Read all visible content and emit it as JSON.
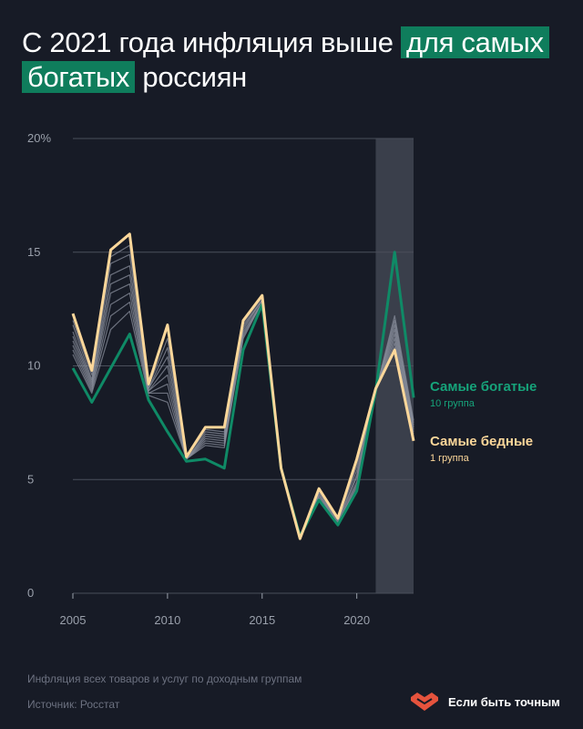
{
  "title": {
    "part1": "С 2021 года инфляция выше",
    "highlight1": "для самых",
    "highlight2": "богатых",
    "part2": "россиян"
  },
  "footnote": {
    "description": "Инфляция всех товаров и услуг по доходным группам",
    "source": "Источник: Росстат"
  },
  "brand": {
    "name": "Если быть точным"
  },
  "colors": {
    "background": "#171b26",
    "rich": "#0f8a66",
    "poor": "#fcd79a",
    "middle": "#8a8f9c",
    "highlight_band": "#3a3f4b",
    "title_highlight": "#0f7d5c",
    "grid": "#4a4f5b",
    "tick": "#9aa0ab"
  },
  "chart_data": {
    "type": "line",
    "title": "С 2021 года инфляция выше для самых богатых россиян",
    "xlabel": "",
    "ylabel": "",
    "x": [
      2005,
      2006,
      2007,
      2008,
      2009,
      2010,
      2011,
      2012,
      2013,
      2014,
      2015,
      2016,
      2017,
      2018,
      2019,
      2020,
      2021,
      2022,
      2023
    ],
    "xlim": [
      2005,
      2023
    ],
    "ylim": [
      0,
      20
    ],
    "y_ticks": [
      {
        "value": 0,
        "label": "0"
      },
      {
        "value": 5,
        "label": "5"
      },
      {
        "value": 10,
        "label": "10"
      },
      {
        "value": 15,
        "label": "15"
      },
      {
        "value": 20,
        "label": "20%"
      }
    ],
    "x_ticks": [
      {
        "value": 2005,
        "label": "2005"
      },
      {
        "value": 2010,
        "label": "2010"
      },
      {
        "value": 2015,
        "label": "2015"
      },
      {
        "value": 2020,
        "label": "2020"
      }
    ],
    "highlight_range": [
      2021,
      2023
    ],
    "grid": true,
    "series": [
      {
        "name": "Самые богатые",
        "sublabel": "10 группа",
        "role": "rich",
        "values": [
          9.9,
          8.4,
          9.9,
          11.4,
          8.5,
          7.1,
          5.8,
          5.9,
          5.5,
          10.7,
          12.7,
          5.5,
          2.5,
          4.1,
          3.0,
          4.5,
          8.9,
          15.0,
          8.6
        ]
      },
      {
        "name": "Самые бедные",
        "sublabel": "1 группа",
        "role": "poor",
        "values": [
          12.3,
          9.8,
          15.1,
          15.8,
          9.2,
          11.8,
          6.0,
          7.3,
          7.3,
          12.0,
          13.1,
          5.5,
          2.4,
          4.6,
          3.3,
          5.9,
          9.0,
          10.7,
          6.7
        ]
      },
      {
        "role": "middle",
        "values": [
          12.0,
          9.6,
          14.8,
          15.3,
          9.1,
          11.2,
          6.0,
          7.2,
          7.1,
          11.9,
          13.0,
          5.5,
          2.4,
          4.5,
          3.3,
          5.6,
          8.9,
          10.8,
          6.9
        ]
      },
      {
        "role": "middle",
        "values": [
          11.8,
          9.4,
          14.5,
          14.9,
          9.0,
          10.8,
          6.0,
          7.1,
          7.0,
          11.8,
          12.9,
          5.5,
          2.4,
          4.5,
          3.3,
          5.4,
          8.9,
          11.0,
          7.0
        ]
      },
      {
        "role": "middle",
        "values": [
          11.5,
          9.3,
          14.0,
          14.4,
          9.0,
          10.4,
          5.9,
          7.0,
          6.9,
          11.7,
          12.9,
          5.5,
          2.4,
          4.4,
          3.2,
          5.2,
          8.9,
          11.2,
          7.1
        ]
      },
      {
        "role": "middle",
        "values": [
          11.3,
          9.2,
          13.6,
          14.0,
          8.9,
          10.0,
          5.9,
          6.9,
          6.8,
          11.6,
          12.9,
          5.5,
          2.4,
          4.4,
          3.2,
          5.1,
          8.9,
          11.4,
          7.2
        ]
      },
      {
        "role": "middle",
        "values": [
          11.1,
          9.1,
          13.2,
          13.6,
          8.9,
          9.6,
          5.9,
          6.8,
          6.7,
          11.5,
          12.8,
          5.5,
          2.4,
          4.3,
          3.2,
          4.9,
          8.9,
          11.6,
          7.3
        ]
      },
      {
        "role": "middle",
        "values": [
          10.9,
          9.0,
          12.7,
          13.2,
          8.8,
          9.2,
          5.9,
          6.7,
          6.6,
          11.4,
          12.8,
          5.5,
          2.4,
          4.3,
          3.1,
          4.8,
          8.9,
          11.8,
          7.4
        ]
      },
      {
        "role": "middle",
        "values": [
          10.7,
          8.9,
          12.2,
          12.8,
          8.8,
          8.8,
          5.9,
          6.6,
          6.5,
          11.3,
          12.8,
          5.5,
          2.4,
          4.2,
          3.1,
          4.7,
          8.9,
          12.0,
          7.5
        ]
      },
      {
        "role": "middle",
        "values": [
          10.5,
          8.8,
          11.6,
          12.4,
          8.7,
          8.4,
          5.9,
          6.5,
          6.4,
          11.2,
          12.8,
          5.5,
          2.4,
          4.2,
          3.1,
          4.6,
          8.9,
          12.2,
          7.6
        ]
      }
    ]
  }
}
